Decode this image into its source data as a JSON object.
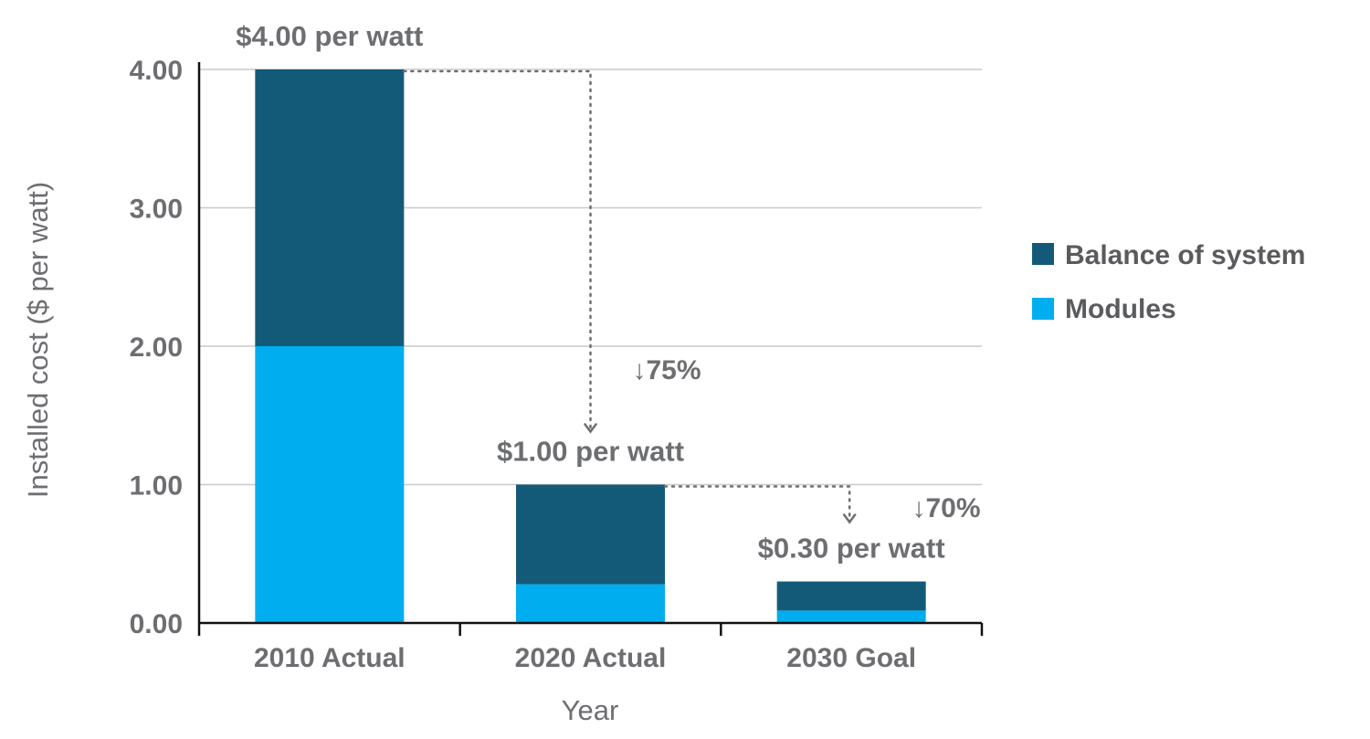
{
  "chart_data": {
    "type": "bar",
    "stacked": true,
    "categories": [
      "2010 Actual",
      "2020 Actual",
      "2030 Goal"
    ],
    "series": [
      {
        "name": "Modules",
        "color": "#00aeef",
        "values": [
          2.0,
          0.28,
          0.09
        ]
      },
      {
        "name": "Balance of system",
        "color": "#135a79",
        "values": [
          2.0,
          0.72,
          0.21
        ]
      }
    ],
    "legend_order": [
      "Balance of system",
      "Modules"
    ],
    "legend_position": "right",
    "totals_labels": [
      "$4.00 per watt",
      "$1.00 per watt",
      "$0.30 per watt"
    ],
    "reductions": [
      {
        "from": "2010 Actual",
        "to": "2020 Actual",
        "label": "↓75%"
      },
      {
        "from": "2020 Actual",
        "to": "2030 Goal",
        "label": "↓70%"
      }
    ],
    "xlabel": "Year",
    "ylabel": "Installed cost ($ per watt)",
    "ylim": [
      0,
      4
    ],
    "yticks": [
      0,
      1,
      2,
      3,
      4
    ],
    "ytick_labels": [
      "0.00",
      "1.00",
      "2.00",
      "3.00",
      "4.00"
    ],
    "grid": true
  }
}
